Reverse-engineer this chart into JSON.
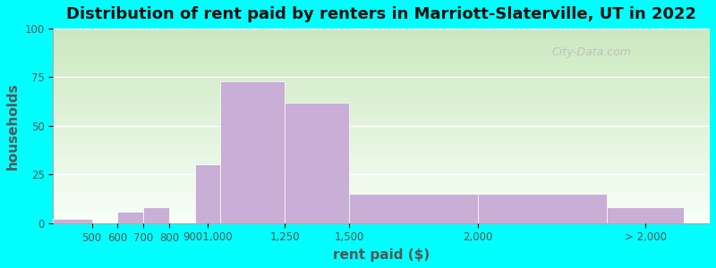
{
  "title": "Distribution of rent paid by renters in Marriott-Slaterville, UT in 2022",
  "xlabel": "rent paid ($)",
  "ylabel": "households",
  "bar_color": "#c9aed6",
  "background_color": "#00ffff",
  "plot_bg_gradient_top": "#cce8c0",
  "plot_bg_gradient_bottom": "#f8fff8",
  "ylim": [
    0,
    100
  ],
  "yticks": [
    0,
    25,
    50,
    75,
    100
  ],
  "values": [
    2,
    0,
    6,
    8,
    0,
    30,
    73,
    62,
    15,
    15,
    8
  ],
  "bar_lefts": [
    350,
    500,
    600,
    700,
    800,
    900,
    1000,
    1250,
    1500,
    2000,
    2500
  ],
  "bar_widths": [
    150,
    100,
    100,
    100,
    100,
    100,
    250,
    250,
    500,
    500,
    300
  ],
  "xlim": [
    350,
    2900
  ],
  "xtick_positions": [
    500,
    600,
    700,
    800,
    950,
    1250,
    1500,
    2000,
    2650
  ],
  "xtick_labels": [
    "500",
    "600",
    "700",
    "800",
    "9001,000",
    "1,250",
    "1,500",
    "2,000",
    "> 2,000"
  ],
  "watermark": "City-Data.com",
  "title_fontsize": 13,
  "axis_label_fontsize": 11,
  "tick_fontsize": 8.5
}
